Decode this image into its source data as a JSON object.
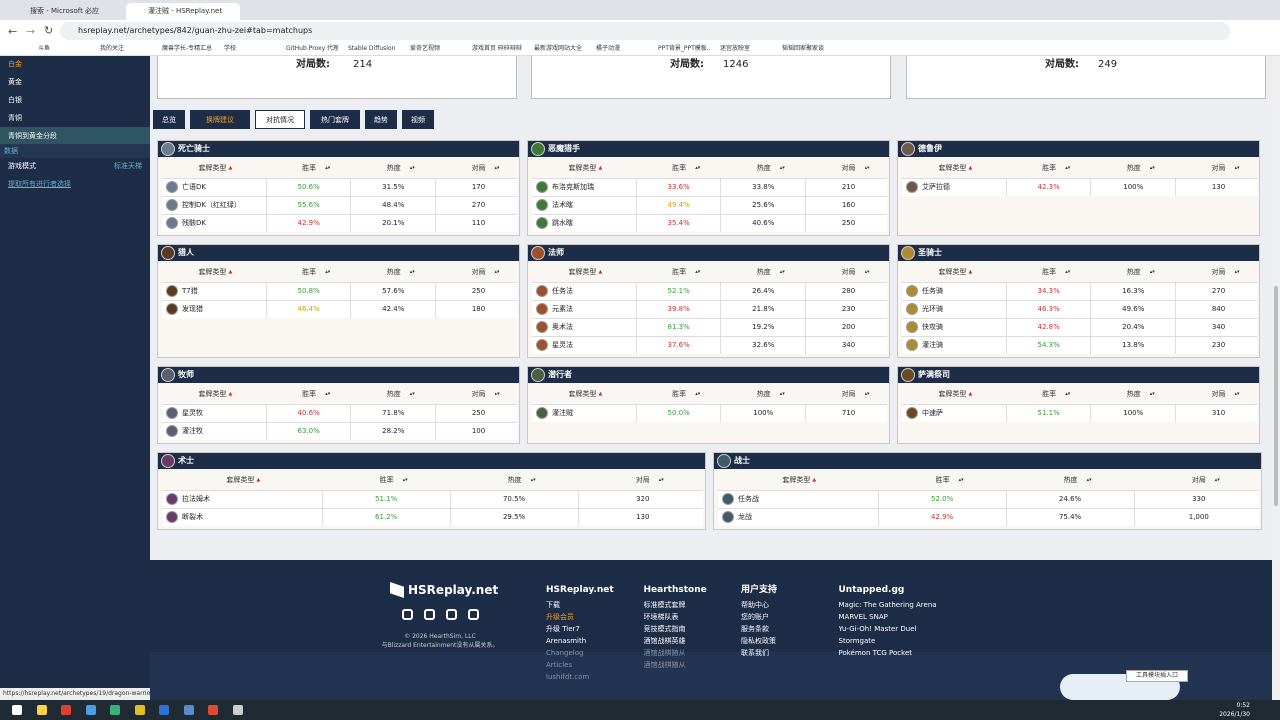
{
  "browser": {
    "tabs": [
      "搜索 - Microsoft 必应",
      "灌注贼 - HSReplay.net"
    ],
    "url": "hsreplay.net/archetypes/842/guan-zhu-zei#tab=matchups",
    "bookmarks": [
      "斗鱼",
      "我的关注",
      "魔兽学长-专精汇总",
      "学校",
      "GitHub Proxy 代理...",
      "Stable Diffusion",
      "爱奇艺视频",
      "游戏首页 碎碎辩辩",
      "最新游戏网站大全",
      "橘子动漫",
      "PPT背景_PPT模板...",
      "迷宫放映室",
      "韬韬回家聚家谈"
    ]
  },
  "sidebar": {
    "ranks": [
      "白金",
      "黄金",
      "白银",
      "青铜",
      "青铜到黄金分段"
    ],
    "section": "数据",
    "filter_label": "游戏模式",
    "filter_value": "标准天梯",
    "link": "提取所有进行者选择"
  },
  "stats": [
    {
      "label": "对局数:",
      "value": "214"
    },
    {
      "label": "对局数:",
      "value": "1246"
    },
    {
      "label": "对局数:",
      "value": "249"
    }
  ],
  "tabs": [
    "总览",
    "换牌建议",
    "对抗情况",
    "热门套牌",
    "趋势",
    "视频"
  ],
  "matchups": {
    "columns": [
      "套牌类型",
      "胜率",
      "热度",
      "对局"
    ],
    "classes": [
      {
        "name": "死亡骑士",
        "color": "#6b7a8f",
        "rows": [
          [
            "亡语DK",
            "50.6%",
            "31.5%",
            "170"
          ],
          [
            "控制DK（红红绿）",
            "55.6%",
            "48.4%",
            "270"
          ],
          [
            "残骸DK",
            "42.9%",
            "20.1%",
            "110"
          ]
        ]
      },
      {
        "name": "恶魔猎手",
        "color": "#3d7a35",
        "rows": [
          [
            "布洛克斯加瑞",
            "33.6%",
            "33.8%",
            "210"
          ],
          [
            "法术瞎",
            "49.4%",
            "25.6%",
            "160"
          ],
          [
            "跳水瞎",
            "35.4%",
            "40.6%",
            "250"
          ]
        ]
      },
      {
        "name": "德鲁伊",
        "color": "#6b5a4a",
        "rows": [
          [
            "艾萨拉德",
            "42.3%",
            "100%",
            "130"
          ]
        ]
      },
      {
        "name": "猎人",
        "color": "#5a3a20",
        "rows": [
          [
            "T7猎",
            "50.8%",
            "57.6%",
            "250"
          ],
          [
            "发现猎",
            "46.4%",
            "42.4%",
            "180"
          ]
        ]
      },
      {
        "name": "法师",
        "color": "#a0502a",
        "rows": [
          [
            "任务法",
            "52.1%",
            "26.4%",
            "280"
          ],
          [
            "元素法",
            "39.8%",
            "21.8%",
            "230"
          ],
          [
            "奥术法",
            "81.3%",
            "19.2%",
            "200"
          ],
          [
            "星灵法",
            "37.6%",
            "32.6%",
            "340"
          ]
        ]
      },
      {
        "name": "圣骑士",
        "color": "#b08a30",
        "rows": [
          [
            "任务骑",
            "34.3%",
            "16.3%",
            "270"
          ],
          [
            "光环骑",
            "46.3%",
            "49.6%",
            "840"
          ],
          [
            "快攻骑",
            "42.8%",
            "20.4%",
            "340"
          ],
          [
            "灌注骑",
            "54.3%",
            "13.8%",
            "230"
          ]
        ]
      },
      {
        "name": "牧师",
        "color": "#5a6070",
        "rows": [
          [
            "星灵牧",
            "40.6%",
            "71.8%",
            "250"
          ],
          [
            "灌注牧",
            "63.0%",
            "28.2%",
            "100"
          ]
        ]
      },
      {
        "name": "潜行者",
        "color": "#4a6040",
        "rows": [
          [
            "灌注贼",
            "50.0%",
            "100%",
            "710"
          ]
        ]
      },
      {
        "name": "萨满祭司",
        "color": "#6a4a20",
        "rows": [
          [
            "中速萨",
            "51.1%",
            "100%",
            "310"
          ]
        ]
      },
      {
        "name": "术士",
        "color": "#6a3a6a",
        "rows": [
          [
            "拉法姆术",
            "51.1%",
            "70.5%",
            "320"
          ],
          [
            "断裂术",
            "61.2%",
            "29.5%",
            "130"
          ]
        ]
      },
      {
        "name": "战士",
        "color": "#405a6a",
        "rows": [
          [
            "任务战",
            "52.0%",
            "24.6%",
            "330"
          ],
          [
            "龙战",
            "42.9%",
            "75.4%",
            "1,000"
          ]
        ]
      }
    ]
  },
  "footer": {
    "brand": "HSReplay.net",
    "copyright": "© 2026 HearthSim, LLC",
    "disclaimer": "与Blizzard Entertainment没有从属关系。",
    "columns": [
      {
        "title": "HSReplay.net",
        "links": [
          "下载",
          "升级会员",
          "升级 Tier7",
          "Arenasmith",
          "Changelog",
          "Articles",
          "lushifdt.com"
        ]
      },
      {
        "title": "Hearthstone",
        "links": [
          "标准模式套牌",
          "环境梯队表",
          "竞技模式指南",
          "酒馆战棋英雄",
          "酒馆战棋随从",
          "酒馆战棋随从"
        ]
      },
      {
        "title": "用户支持",
        "links": [
          "帮助中心",
          "您的账户",
          "服务条款",
          "隐私权政策",
          "联系我们"
        ]
      },
      {
        "title": "Untapped.gg",
        "links": [
          "Magic: The Gathering Arena",
          "MARVEL SNAP",
          "Yu-Gi-Oh! Master Duel",
          "Stormgate",
          "Pokémon TCG Pocket"
        ]
      }
    ]
  },
  "status_url": "https://hsreplay.net/archetypes/19/dragon-warrior",
  "popup": "工具模块插入口",
  "clock": {
    "time": "0:52",
    "date": "2026/1/30"
  }
}
